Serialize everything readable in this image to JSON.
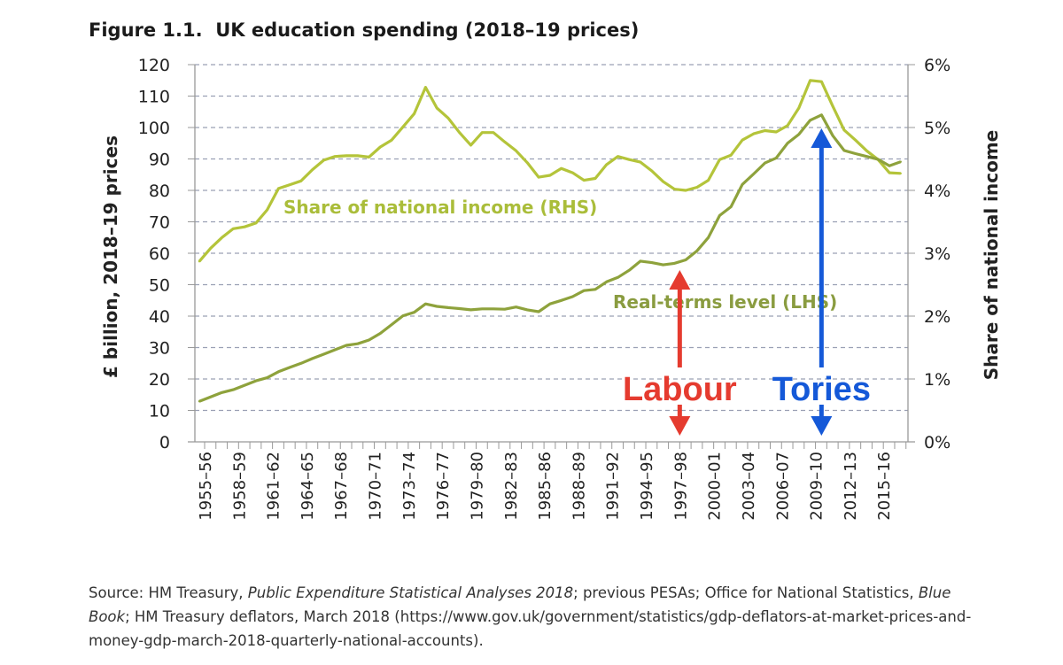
{
  "chart_data": {
    "type": "line",
    "title": "Figure 1.1.  UK education spending (2018–19 prices)",
    "ylabel_left": "£ billion, 2018–19 prices",
    "ylabel_right": "Share of national income",
    "ylim_left": [
      0,
      120
    ],
    "ylim_right": [
      0,
      6
    ],
    "yticks_left": [
      "0",
      "10",
      "20",
      "30",
      "40",
      "50",
      "60",
      "70",
      "80",
      "90",
      "100",
      "110",
      "120"
    ],
    "yticks_right": [
      "0%",
      "1%",
      "2%",
      "3%",
      "4%",
      "5%",
      "6%"
    ],
    "grid": "horizontal dashed",
    "x": [
      "1955–56",
      "1956–57",
      "1957–58",
      "1958–59",
      "1959–60",
      "1960–61",
      "1961–62",
      "1962–63",
      "1963–64",
      "1964–65",
      "1965–66",
      "1966–67",
      "1967–68",
      "1968–69",
      "1969–70",
      "1970–71",
      "1971–72",
      "1972–73",
      "1973–74",
      "1974–75",
      "1975–76",
      "1976–77",
      "1977–78",
      "1978–79",
      "1979–80",
      "1980–81",
      "1981–82",
      "1982–83",
      "1983–84",
      "1984–85",
      "1985–86",
      "1986–87",
      "1987–88",
      "1988–89",
      "1989–90",
      "1990–91",
      "1991–92",
      "1992–93",
      "1993–94",
      "1994–95",
      "1995–96",
      "1996–97",
      "1997–98",
      "1998–99",
      "1999–00",
      "2000–01",
      "2001–02",
      "2002–03",
      "2003–04",
      "2004–05",
      "2005–06",
      "2006–07",
      "2007–08",
      "2008–09",
      "2009–10",
      "2010–11",
      "2011–12",
      "2012–13",
      "2013–14",
      "2014–15",
      "2015–16",
      "2016–17",
      "2017–18"
    ],
    "xtick_labels": [
      "1955–56",
      "1958–59",
      "1961–62",
      "1964–65",
      "1967–68",
      "1970–71",
      "1973–74",
      "1976–77",
      "1979–80",
      "1982–83",
      "1985–86",
      "1988–89",
      "1991–92",
      "1994–95",
      "1997–98",
      "2000–01",
      "2003–04",
      "2006–07",
      "2009–10",
      "2012–13",
      "2015–16"
    ],
    "series": [
      {
        "name": "Share of national income (RHS)",
        "axis": "right",
        "color": "#b4c43a",
        "values": [
          2.87,
          3.08,
          3.25,
          3.39,
          3.42,
          3.48,
          3.69,
          4.03,
          4.09,
          4.15,
          4.33,
          4.48,
          4.54,
          4.55,
          4.55,
          4.53,
          4.69,
          4.8,
          5.01,
          5.22,
          5.64,
          5.31,
          5.15,
          4.92,
          4.72,
          4.92,
          4.92,
          4.77,
          4.63,
          4.44,
          4.21,
          4.24,
          4.35,
          4.28,
          4.16,
          4.19,
          4.41,
          4.54,
          4.49,
          4.45,
          4.31,
          4.14,
          4.02,
          4.0,
          4.05,
          4.16,
          4.49,
          4.56,
          4.8,
          4.9,
          4.95,
          4.93,
          5.03,
          5.31,
          5.75,
          5.73,
          5.34,
          4.96,
          4.8,
          4.63,
          4.49,
          4.28,
          4.27
        ]
      },
      {
        "name": "Real-terms level (LHS)",
        "axis": "left",
        "color": "#8ea23c",
        "values": [
          12.9,
          14.3,
          15.7,
          16.6,
          18,
          19.4,
          20.4,
          22.3,
          23.7,
          25,
          26.5,
          27.9,
          29.3,
          30.7,
          31.2,
          32.4,
          34.5,
          37.3,
          40.1,
          41.2,
          43.9,
          43.1,
          42.7,
          42.4,
          42,
          42.3,
          42.3,
          42.2,
          42.9,
          42,
          41.4,
          43.9,
          45,
          46.2,
          48.1,
          48.5,
          50.9,
          52.3,
          54.6,
          57.5,
          57,
          56.3,
          56.8,
          57.9,
          60.8,
          65,
          72,
          74.8,
          81.9,
          85.2,
          88.7,
          90.3,
          95,
          97.8,
          102.3,
          104,
          97.4,
          92.7,
          91.7,
          90.8,
          89.9,
          87.8,
          89.1
        ]
      }
    ],
    "annotations": [
      {
        "text": "Labour",
        "color": "#e53b2f",
        "at": "1997–98"
      },
      {
        "text": "Tories",
        "color": "#1559d8",
        "at": "2010–11"
      }
    ]
  },
  "source": {
    "prefix": "Source: HM Treasury, ",
    "pesa": "Public Expenditure Statistical Analyses 2018",
    "mid": "; previous PESAs; Office for National Statistics, ",
    "bluebook": "Blue Book",
    "suffix": "; HM Treasury deflators, March 2018 (https://www.gov.uk/government/statistics/gdp-deflators-at-market-prices-and-money-gdp-march-2018-quarterly-national-accounts)."
  }
}
